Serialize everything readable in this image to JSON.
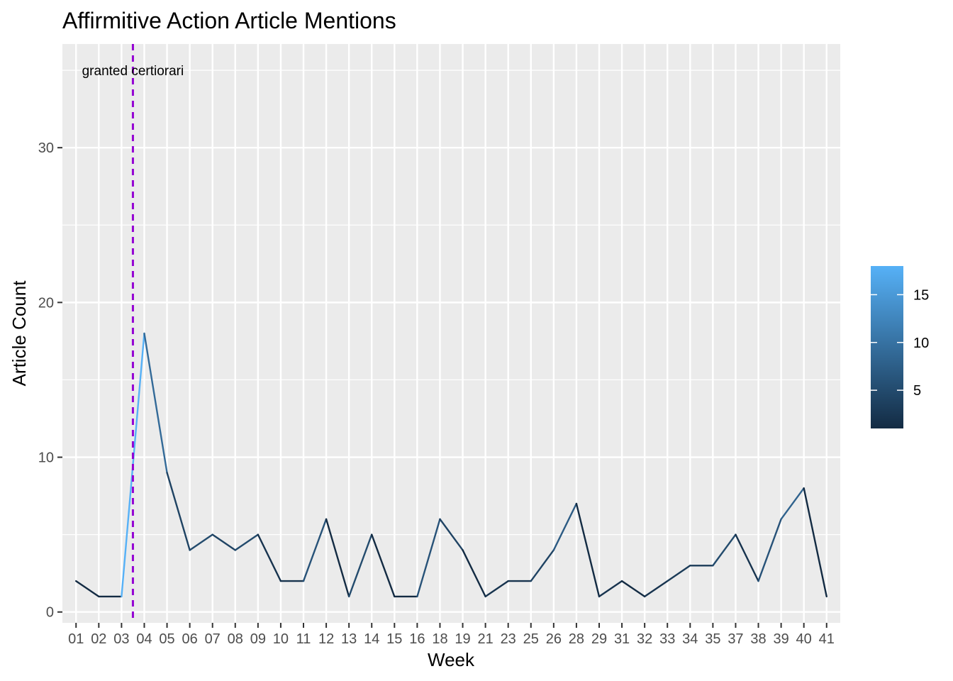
{
  "chart_data": {
    "type": "line",
    "title": "Affirmitive Action Article Mentions",
    "xlabel": "Week",
    "ylabel": "Article Count",
    "categories": [
      "01",
      "02",
      "03",
      "04",
      "05",
      "06",
      "07",
      "08",
      "09",
      "10",
      "11",
      "12",
      "13",
      "14",
      "15",
      "16",
      "18",
      "19",
      "21",
      "23",
      "25",
      "26",
      "28",
      "29",
      "31",
      "32",
      "33",
      "34",
      "35",
      "37",
      "38",
      "39",
      "40",
      "41"
    ],
    "values": [
      2,
      1,
      1,
      18,
      9,
      4,
      5,
      4,
      5,
      2,
      2,
      6,
      1,
      5,
      1,
      1,
      6,
      4,
      1,
      2,
      2,
      4,
      7,
      1,
      2,
      1,
      2,
      3,
      3,
      5,
      2,
      6,
      8,
      1
    ],
    "ylim": [
      -0.7,
      36.7
    ],
    "yticks": [
      0,
      10,
      20,
      30
    ],
    "grid": true,
    "annotation": {
      "text": "granted certiorari",
      "x_position": 3.5,
      "line_color": "#9400D3",
      "line_style": "dashed"
    },
    "color_scale": {
      "low_color": "#132B43",
      "high_color": "#56B1F7",
      "min": 1,
      "max": 18,
      "ticks": [
        5,
        10,
        15
      ]
    },
    "legend_position": "right"
  }
}
